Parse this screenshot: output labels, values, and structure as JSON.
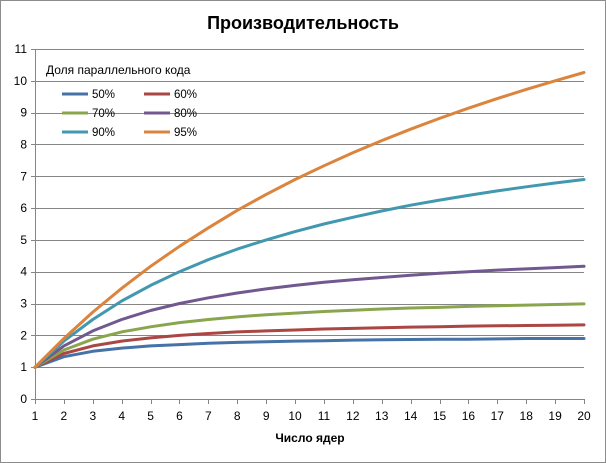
{
  "chart_data": {
    "type": "line",
    "title": "Производительность",
    "xlabel": "Число ядер",
    "ylabel": "",
    "x": [
      1,
      2,
      3,
      4,
      5,
      6,
      7,
      8,
      9,
      10,
      11,
      12,
      13,
      14,
      15,
      16,
      17,
      18,
      19,
      20
    ],
    "xlim": [
      1,
      20
    ],
    "ylim": [
      0,
      11
    ],
    "yticks": [
      0,
      1,
      2,
      3,
      4,
      5,
      6,
      7,
      8,
      9,
      10,
      11
    ],
    "grid": "horizontal",
    "legend": {
      "title": "Доля параллельного кода",
      "placement": "top-left"
    },
    "series": [
      {
        "name": "50%",
        "color": "#4572a7",
        "values": [
          1.0,
          1.33,
          1.5,
          1.6,
          1.67,
          1.71,
          1.75,
          1.78,
          1.8,
          1.82,
          1.83,
          1.85,
          1.86,
          1.87,
          1.88,
          1.88,
          1.89,
          1.9,
          1.9,
          1.9
        ]
      },
      {
        "name": "60%",
        "color": "#aa4643",
        "values": [
          1.0,
          1.43,
          1.67,
          1.82,
          1.92,
          2.0,
          2.06,
          2.11,
          2.14,
          2.17,
          2.2,
          2.22,
          2.24,
          2.26,
          2.27,
          2.29,
          2.3,
          2.31,
          2.32,
          2.33
        ]
      },
      {
        "name": "70%",
        "color": "#89a54e",
        "values": [
          1.0,
          1.54,
          1.88,
          2.11,
          2.27,
          2.4,
          2.5,
          2.58,
          2.65,
          2.7,
          2.75,
          2.79,
          2.83,
          2.86,
          2.88,
          2.91,
          2.93,
          2.95,
          2.97,
          2.99
        ]
      },
      {
        "name": "80%",
        "color": "#71588f",
        "values": [
          1.0,
          1.67,
          2.14,
          2.5,
          2.78,
          3.0,
          3.18,
          3.33,
          3.46,
          3.57,
          3.67,
          3.75,
          3.82,
          3.89,
          3.95,
          4.0,
          4.05,
          4.09,
          4.13,
          4.17
        ]
      },
      {
        "name": "90%",
        "color": "#4198af",
        "values": [
          1.0,
          1.82,
          2.5,
          3.08,
          3.57,
          4.0,
          4.38,
          4.71,
          5.0,
          5.26,
          5.5,
          5.71,
          5.91,
          6.09,
          6.25,
          6.4,
          6.54,
          6.67,
          6.79,
          6.9
        ]
      },
      {
        "name": "95%",
        "color": "#db843d",
        "values": [
          1.0,
          1.9,
          2.73,
          3.48,
          4.17,
          4.8,
          5.38,
          5.93,
          6.43,
          6.9,
          7.33,
          7.74,
          8.12,
          8.48,
          8.82,
          9.14,
          9.44,
          9.73,
          10.0,
          10.26
        ]
      }
    ]
  }
}
